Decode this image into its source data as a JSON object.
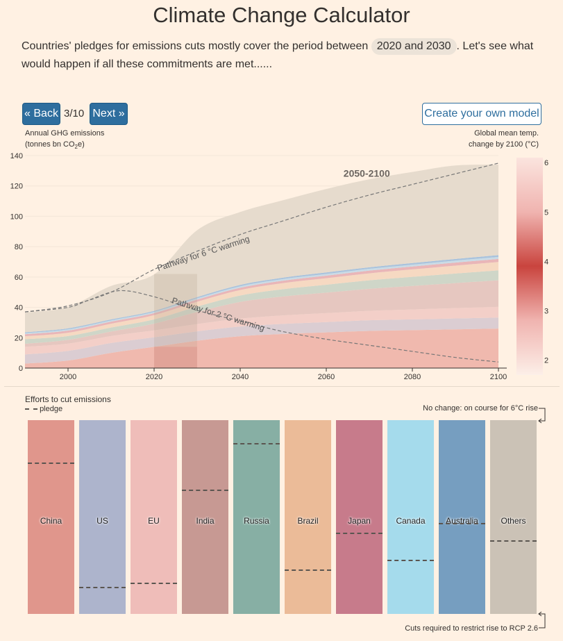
{
  "page": {
    "title": "Climate Change Calculator",
    "intro_before": "Countries' pledges for emissions cuts mostly cover the period between",
    "intro_highlight": "2020 and 2030",
    "intro_after": ". Let's see what would happen if all these commitments are met......"
  },
  "nav": {
    "back_label": "« Back",
    "step": "3/10",
    "next_label": "Next »",
    "create_label": "Create your own model"
  },
  "chart_labels": {
    "left_axis_line1": "Annual GHG emissions",
    "left_axis_line2_prefix": "(tonnes bn CO",
    "left_axis_sub": "2",
    "left_axis_line2_suffix": "e)",
    "right_axis_line1": "Global mean temp.",
    "right_axis_line2": "change by 2100 (°C)",
    "period_label": "2050-2100",
    "pathway_6": "Pathway for 6 °C warming",
    "pathway_2": "Pathway for 2 °C warming"
  },
  "chart_data": {
    "type": "area",
    "xlim": [
      1990,
      2100
    ],
    "ylim": [
      0,
      140
    ],
    "x_ticks": [
      2000,
      2020,
      2040,
      2060,
      2080,
      2100
    ],
    "y_ticks": [
      0,
      20,
      40,
      60,
      80,
      100,
      120,
      140
    ],
    "highlight_period": [
      2020,
      2030
    ],
    "x": [
      1990,
      2000,
      2010,
      2020,
      2030,
      2040,
      2050,
      2060,
      2070,
      2080,
      2090,
      2100
    ],
    "series": [
      {
        "name": "China",
        "color": "#f0b9ae",
        "values": [
          3,
          5,
          10,
          14,
          18,
          21,
          22.5,
          23.5,
          24.5,
          25,
          25.5,
          26
        ]
      },
      {
        "name": "US",
        "color": "#dbcdd2",
        "values": [
          6,
          6.3,
          6.5,
          6.3,
          6.2,
          6.4,
          6.6,
          6.8,
          7,
          7.1,
          7.2,
          7.3
        ]
      },
      {
        "name": "EU",
        "color": "#f3cfc8",
        "values": [
          5,
          4.8,
          4.6,
          4.5,
          4.8,
          5.2,
          5.6,
          5.9,
          6.2,
          6.5,
          6.8,
          7
        ]
      },
      {
        "name": "India",
        "color": "#e6c7c0",
        "values": [
          2,
          2.5,
          3,
          4.5,
          8,
          11,
          12.5,
          13.5,
          14.5,
          15.5,
          16.5,
          17.5
        ]
      },
      {
        "name": "Russia",
        "color": "#cfd6c8",
        "values": [
          3,
          2.5,
          2.6,
          2.8,
          3.5,
          4.2,
          4.8,
          5.2,
          5.6,
          6,
          6.3,
          6.6
        ]
      },
      {
        "name": "Brazil",
        "color": "#f6d9c2",
        "values": [
          2,
          2.2,
          2.5,
          2.8,
          3.2,
          3.6,
          4,
          4.3,
          4.6,
          4.9,
          5.2,
          5.5
        ]
      },
      {
        "name": "Japan",
        "color": "#e9b6b8",
        "values": [
          1.3,
          1.4,
          1.4,
          1.3,
          1.4,
          1.5,
          1.6,
          1.7,
          1.8,
          1.9,
          2,
          2
        ]
      },
      {
        "name": "Canada",
        "color": "#c9dbe6",
        "values": [
          0.7,
          0.8,
          0.8,
          0.8,
          0.9,
          1,
          1.1,
          1.1,
          1.2,
          1.2,
          1.3,
          1.3
        ]
      },
      {
        "name": "Australia",
        "color": "#a9c3dd",
        "values": [
          0.6,
          0.7,
          0.7,
          0.7,
          0.8,
          0.9,
          0.9,
          1,
          1,
          1.1,
          1.1,
          1.2
        ]
      },
      {
        "name": "Others",
        "color": "#e6dbcd",
        "values": [
          13,
          14,
          22,
          24,
          44,
          48,
          51,
          55,
          58,
          60,
          61.6,
          59.6
        ]
      }
    ],
    "pathway_6C": {
      "x": [
        1990,
        2000,
        2010,
        2020,
        2030,
        2040,
        2050,
        2060,
        2070,
        2080,
        2090,
        2100
      ],
      "values": [
        37,
        41,
        50,
        65,
        77,
        88,
        97,
        106,
        114,
        121,
        128,
        135
      ]
    },
    "pathway_2C": {
      "x": [
        1990,
        2000,
        2005,
        2012,
        2020,
        2030,
        2040,
        2050,
        2060,
        2070,
        2080,
        2090,
        2100
      ],
      "values": [
        37,
        40,
        45,
        51,
        47,
        38,
        31,
        24,
        19,
        15,
        11,
        7,
        4
      ]
    },
    "temperature_scale": {
      "ticks": [
        2,
        3,
        4,
        5,
        6
      ],
      "range": [
        1.7,
        6.1
      ]
    }
  },
  "efforts": {
    "title": "Efforts to cut emissions",
    "pledge_label": "pledge",
    "top_note": "No change: on course for 6°C rise",
    "bottom_note": "Cuts required to restrict rise to RCP 2.6",
    "countries": [
      {
        "name": "China",
        "color": "#e0968c",
        "pledge": 0.78
      },
      {
        "name": "US",
        "color": "#adb4cc",
        "pledge": 0.14
      },
      {
        "name": "EU",
        "color": "#efbdb9",
        "pledge": 0.16
      },
      {
        "name": "India",
        "color": "#c79993",
        "pledge": 0.64
      },
      {
        "name": "Russia",
        "color": "#87afa4",
        "pledge": 0.88
      },
      {
        "name": "Brazil",
        "color": "#ebbb98",
        "pledge": 0.23
      },
      {
        "name": "Japan",
        "color": "#c77b8b",
        "pledge": 0.42
      },
      {
        "name": "Canada",
        "color": "#a5dbec",
        "pledge": 0.28
      },
      {
        "name": "Australia",
        "color": "#769ec0",
        "pledge": 0.47
      },
      {
        "name": "Others",
        "color": "#cbc2b6",
        "pledge": 0.38
      }
    ]
  }
}
